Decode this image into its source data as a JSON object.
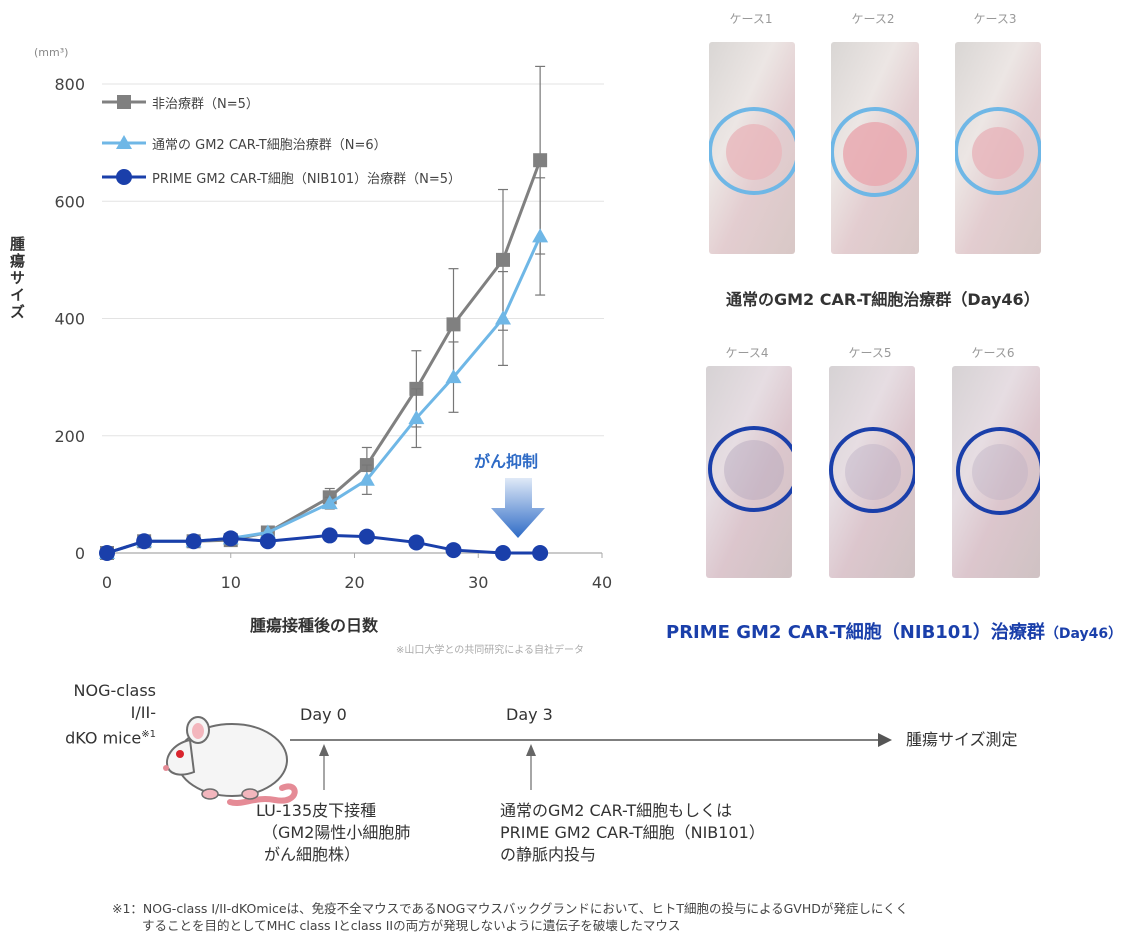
{
  "chart_data": {
    "type": "line",
    "unit_label": "(mm³)",
    "ylabel": "腫瘍サイズ",
    "xlabel": "腫瘍接種後の日数",
    "xlim": [
      0,
      40
    ],
    "ylim": [
      0,
      800
    ],
    "x_ticks": [
      "0",
      "10",
      "20",
      "30",
      "40"
    ],
    "y_ticks": [
      "0",
      "200",
      "400",
      "600",
      "800"
    ],
    "grid": "horizontal",
    "legend_position": "top-left",
    "series": [
      {
        "name": "非治療群（N=5）",
        "marker": "square",
        "color": "#808080",
        "points": [
          [
            0,
            0
          ],
          [
            3,
            20
          ],
          [
            7,
            20
          ],
          [
            10,
            22
          ],
          [
            13,
            35
          ],
          [
            18,
            95
          ],
          [
            21,
            150
          ],
          [
            25,
            280
          ],
          [
            28,
            390
          ],
          [
            32,
            500
          ],
          [
            35,
            670
          ]
        ],
        "errors": [
          0,
          0,
          0,
          0,
          0,
          15,
          30,
          65,
          95,
          120,
          160
        ]
      },
      {
        "name": "通常の GM2 CAR-T細胞治療群（N=6）",
        "marker": "triangle",
        "color": "#6fb7e6",
        "points": [
          [
            0,
            0
          ],
          [
            3,
            20
          ],
          [
            7,
            20
          ],
          [
            10,
            25
          ],
          [
            13,
            35
          ],
          [
            18,
            85
          ],
          [
            21,
            125
          ],
          [
            25,
            230
          ],
          [
            28,
            300
          ],
          [
            32,
            400
          ],
          [
            35,
            540
          ]
        ],
        "errors": [
          0,
          0,
          0,
          0,
          0,
          10,
          25,
          50,
          60,
          80,
          100
        ]
      },
      {
        "name": "PRIME GM2 CAR-T細胞（NIB101）治療群（N=5）",
        "marker": "circle",
        "color": "#1a3faa",
        "points": [
          [
            0,
            0
          ],
          [
            3,
            20
          ],
          [
            7,
            20
          ],
          [
            10,
            25
          ],
          [
            13,
            20
          ],
          [
            18,
            30
          ],
          [
            21,
            28
          ],
          [
            25,
            18
          ],
          [
            28,
            5
          ],
          [
            32,
            0
          ],
          [
            35,
            0
          ]
        ],
        "errors": [
          0,
          0,
          0,
          0,
          0,
          0,
          0,
          0,
          0,
          0,
          0
        ]
      }
    ],
    "annotation": "がん抑制",
    "source_note": "※山口大学との共同研究による自社データ"
  },
  "photos": {
    "group1_cases": [
      "ケース1",
      "ケース2",
      "ケース3"
    ],
    "group1_caption": "通常のGM2 CAR-T細胞治療群（Day46）",
    "group1_ring_color": "#6fb7e6",
    "group2_cases": [
      "ケース4",
      "ケース5",
      "ケース6"
    ],
    "group2_caption_main": "PRIME GM2 CAR-T細胞（NIB101）治療群",
    "group2_caption_day": "（Day46）",
    "group2_ring_color": "#1a3faa"
  },
  "timeline": {
    "mouse_label_line1": "NOG-class I/II-",
    "mouse_label_line2": "dKO mice",
    "mouse_label_sup": "※1",
    "day0": "Day 0",
    "day3": "Day 3",
    "end_label": "腫瘍サイズ測定",
    "day0_event_line1": "LU-135皮下接種",
    "day0_event_line2": "（GM2陽性小細胞肺",
    "day0_event_line3": "がん細胞株）",
    "day3_event_line1": "通常のGM2 CAR-T細胞もしくは",
    "day3_event_line2": "PRIME GM2 CAR-T細胞（NIB101）",
    "day3_event_line3": "の静脈内投与"
  },
  "footnote": {
    "line1": "※1：NOG-class I/II-dKOmiceは、免疫不全マウスであるNOGマウスバックグランドにおいて、ヒトT細胞の投与によるGVHDが発症しにくく",
    "line2": "することを目的としてMHC class Iとclass IIの両方が発現しないように遺伝子を破壊したマウス"
  }
}
